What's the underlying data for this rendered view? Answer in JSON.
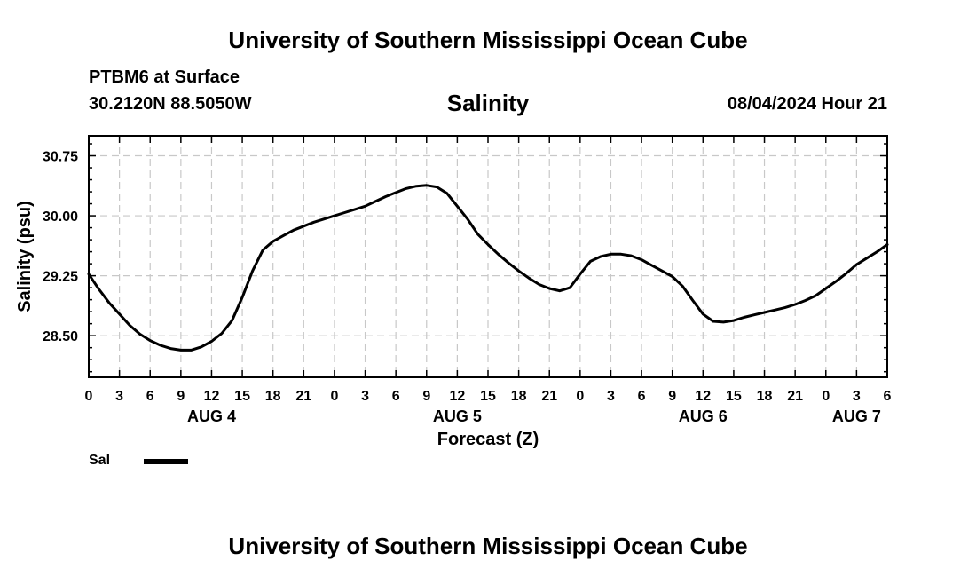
{
  "header": {
    "title": "University of Southern Mississippi Ocean Cube",
    "station": "PTBM6 at Surface",
    "coords": "30.2120N  88.5050W",
    "chart_title": "Salinity",
    "datetime": "08/04/2024 Hour 21"
  },
  "footer": {
    "title": "University of Southern Mississippi Ocean Cube"
  },
  "legend": {
    "label": "Sal",
    "color": "#000000"
  },
  "chart_data": {
    "type": "line",
    "title": "Salinity",
    "xlabel": "Forecast (Z)",
    "ylabel": "Salinity (psu)",
    "x_unit": "forecast hour from AUG 4 00Z",
    "xlim": [
      0,
      78
    ],
    "ylim": [
      27.98,
      31.0
    ],
    "yticks": [
      28.5,
      29.25,
      30.0,
      30.75
    ],
    "ytick_labels": [
      "28.50",
      "29.25",
      "30.00",
      "30.75"
    ],
    "xticks": [
      0,
      3,
      6,
      9,
      12,
      15,
      18,
      21,
      24,
      27,
      30,
      33,
      36,
      39,
      42,
      45,
      48,
      51,
      54,
      57,
      60,
      63,
      66,
      69,
      72,
      75,
      78
    ],
    "xtick_labels": [
      "0",
      "3",
      "6",
      "9",
      "12",
      "15",
      "18",
      "21",
      "0",
      "3",
      "6",
      "9",
      "12",
      "15",
      "18",
      "21",
      "0",
      "3",
      "6",
      "9",
      "12",
      "15",
      "18",
      "21",
      "0",
      "3",
      "6"
    ],
    "day_labels": [
      {
        "x": 12,
        "label": "AUG 4"
      },
      {
        "x": 36,
        "label": "AUG 5"
      },
      {
        "x": 60,
        "label": "AUG 6"
      },
      {
        "x": 75,
        "label": "AUG 7"
      }
    ],
    "grid": true,
    "series": [
      {
        "name": "Sal",
        "color": "#000000",
        "x": [
          0,
          1,
          2,
          3,
          4,
          5,
          6,
          7,
          8,
          9,
          10,
          11,
          12,
          13,
          14,
          15,
          16,
          17,
          18,
          19,
          20,
          21,
          22,
          23,
          24,
          25,
          26,
          27,
          28,
          29,
          30,
          31,
          32,
          33,
          34,
          35,
          36,
          37,
          38,
          39,
          40,
          41,
          42,
          43,
          44,
          45,
          46,
          47,
          48,
          49,
          50,
          51,
          52,
          53,
          54,
          55,
          56,
          57,
          58,
          59,
          60,
          61,
          62,
          63,
          64,
          65,
          66,
          67,
          68,
          69,
          70,
          71,
          72,
          73,
          74,
          75,
          76,
          77,
          78
        ],
        "values": [
          29.27,
          29.08,
          28.91,
          28.77,
          28.63,
          28.52,
          28.44,
          28.38,
          28.34,
          28.32,
          28.32,
          28.36,
          28.43,
          28.53,
          28.69,
          28.98,
          29.31,
          29.57,
          29.68,
          29.75,
          29.82,
          29.87,
          29.92,
          29.96,
          30.0,
          30.04,
          30.08,
          30.12,
          30.18,
          30.24,
          30.29,
          30.34,
          30.37,
          30.38,
          30.36,
          30.28,
          30.12,
          29.96,
          29.77,
          29.64,
          29.52,
          29.41,
          29.31,
          29.22,
          29.14,
          29.09,
          29.06,
          29.1,
          29.27,
          29.43,
          29.49,
          29.52,
          29.52,
          29.5,
          29.45,
          29.38,
          29.31,
          29.24,
          29.12,
          28.94,
          28.77,
          28.68,
          28.67,
          28.69,
          28.73,
          28.76,
          28.79,
          28.82,
          28.85,
          28.89,
          28.94,
          29.0,
          29.09,
          29.18,
          29.28,
          29.39,
          29.47,
          29.55,
          29.64
        ]
      }
    ]
  }
}
